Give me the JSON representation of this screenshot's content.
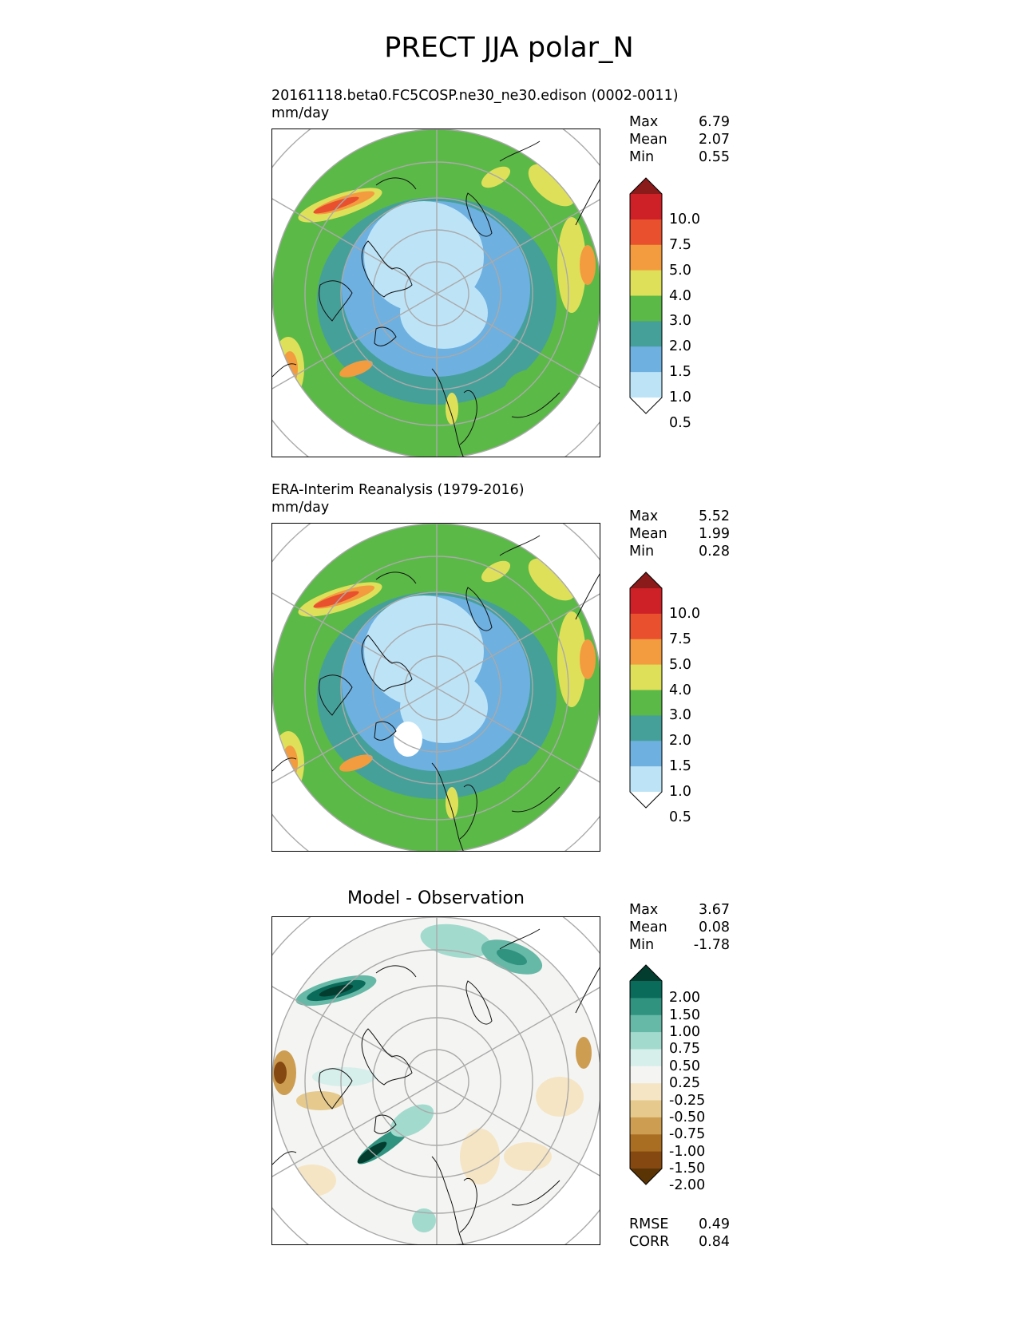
{
  "figure": {
    "title": "PRECT JJA polar_N"
  },
  "panels": [
    {
      "id": "test",
      "label": "20161118.beta0.FC5COSP.ne30_ne30.edison (0002-0011)",
      "units": "mm/day",
      "stats": [
        {
          "key": "Max",
          "value": "6.79"
        },
        {
          "key": "Mean",
          "value": "2.07"
        },
        {
          "key": "Min",
          "value": "0.55"
        }
      ]
    },
    {
      "id": "reference",
      "label": "ERA-Interim Reanalysis (1979-2016)",
      "units": "mm/day",
      "stats": [
        {
          "key": "Max",
          "value": "5.52"
        },
        {
          "key": "Mean",
          "value": "1.99"
        },
        {
          "key": "Min",
          "value": "0.28"
        }
      ]
    },
    {
      "id": "difference",
      "title": "Model - Observation",
      "stats": [
        {
          "key": "Max",
          "value": "3.67"
        },
        {
          "key": "Mean",
          "value": "0.08"
        },
        {
          "key": "Min",
          "value": "-1.78"
        }
      ],
      "metrics": [
        {
          "key": "RMSE",
          "value": "0.49"
        },
        {
          "key": "CORR",
          "value": "0.84"
        }
      ]
    }
  ],
  "colorbars": {
    "precip": {
      "levels": [
        "10.0",
        "7.5",
        "5.0",
        "4.0",
        "3.0",
        "2.0",
        "1.5",
        "1.0",
        "0.5"
      ],
      "colors": [
        "#8b1a1a",
        "#cd2027",
        "#e8502e",
        "#f39c3f",
        "#dfe05a",
        "#5bb947",
        "#46a09a",
        "#6eb0e0",
        "#bde3f7",
        "#ffffff"
      ]
    },
    "diff": {
      "levels": [
        "2.00",
        "1.50",
        "1.00",
        "0.75",
        "0.50",
        "0.25",
        "-0.25",
        "-0.50",
        "-0.75",
        "-1.00",
        "-1.50",
        "-2.00"
      ],
      "colors": [
        "#033d2f",
        "#0a6b5a",
        "#2f9380",
        "#66b8a7",
        "#a3dace",
        "#d6efea",
        "#f4f4f2",
        "#f5e5c4",
        "#e6c98c",
        "#cd9d52",
        "#a96e22",
        "#844810",
        "#5a3405"
      ]
    }
  }
}
